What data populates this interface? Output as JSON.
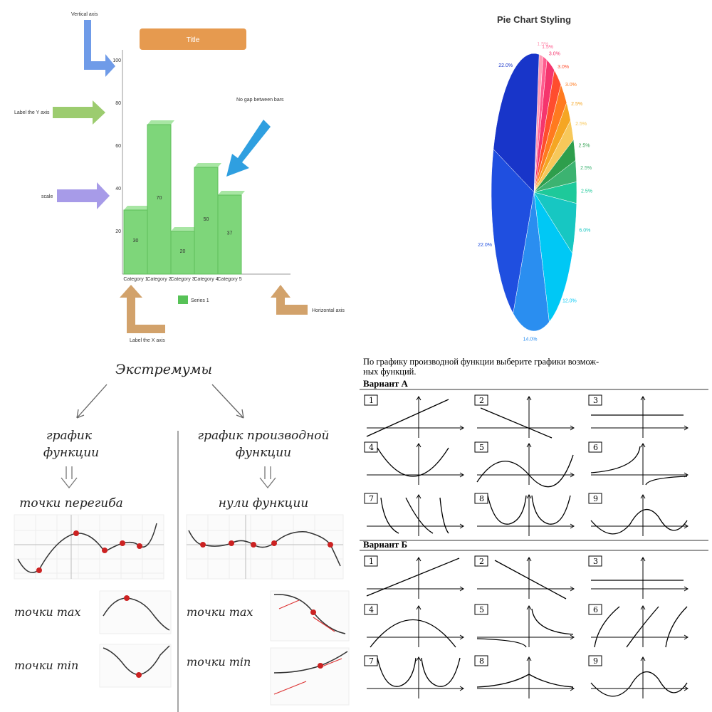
{
  "bar_infographic": {
    "title_box": "Title",
    "callouts": {
      "vertical_axis": "Vertical axis",
      "label_y": "Label the Y axis",
      "scale": "scale",
      "no_gap": "No gap between bars",
      "label_x": "Label the X axis",
      "horizontal_axis": "Horizontal axis"
    },
    "legend_label": "Series 1",
    "colors": {
      "bar": "#7ed67a",
      "title": "#e69a4f",
      "blue_arrow": "#6f9be8",
      "green_arrow": "#9ccc6f",
      "purple_arrow": "#a79be8",
      "tan_arrow": "#d2a26b",
      "cyan_arrow": "#2f9fe0"
    },
    "chart_data": {
      "type": "bar",
      "categories": [
        "Category 1",
        "Category 2",
        "Category 3",
        "Category 4",
        "Category 5"
      ],
      "series": [
        {
          "name": "Series 1",
          "values": [
            30,
            70,
            20,
            50,
            37
          ]
        }
      ],
      "data_labels": [
        "30",
        "70",
        "20",
        "50",
        "37"
      ],
      "ytick_labels": [
        "20",
        "40",
        "60",
        "80",
        "100"
      ],
      "ylim": [
        0,
        100
      ]
    }
  },
  "pie": {
    "chart_data": {
      "type": "pie",
      "title": "Pie Chart Styling",
      "labels": [
        "1.5%",
        "1.5%",
        "3.0%",
        "3.0%",
        "3.0%",
        "2.5%",
        "2.5%",
        "2.5%",
        "2.5%",
        "2.5%",
        "6.0%",
        "12.0%",
        "14.0%",
        "22.0%",
        "22.0%"
      ],
      "values": [
        1.5,
        1.5,
        3.0,
        3.0,
        3.0,
        2.5,
        2.5,
        2.5,
        2.5,
        2.5,
        6.0,
        12.0,
        14.0,
        22.0,
        22.0
      ],
      "colors": [
        "#ff9bb6",
        "#ff5c8f",
        "#f5356d",
        "#ff4d2e",
        "#ff7a1f",
        "#f5a623",
        "#f7c85a",
        "#2e9e4c",
        "#3cb371",
        "#1ec99a",
        "#17c7c2",
        "#00c8f5",
        "#2a8ef0",
        "#1f4fe0",
        "#1835c9"
      ]
    }
  },
  "extrema": {
    "title": "Экстремумы",
    "left_heading_1": "график",
    "left_heading_2": "функции",
    "right_heading_1": "график производной",
    "right_heading_2": "функции",
    "left_sub": "точки перегиба",
    "right_sub": "нули функции",
    "max_label_left": "точки max",
    "min_label_left": "точки min",
    "max_label_right": "точки max",
    "min_label_right": "точки min"
  },
  "worksheet": {
    "intro_line1": "По графику производной функции выберите графики возмож-",
    "intro_line2": "ных функций.",
    "variant_a": "Вариант А",
    "variant_b": "Вариант Б",
    "a_nums": [
      "1",
      "2",
      "3",
      "4",
      "5",
      "6",
      "7",
      "8",
      "9"
    ],
    "b_nums": [
      "1",
      "2",
      "3",
      "4",
      "5",
      "6",
      "7",
      "8",
      "9"
    ]
  }
}
